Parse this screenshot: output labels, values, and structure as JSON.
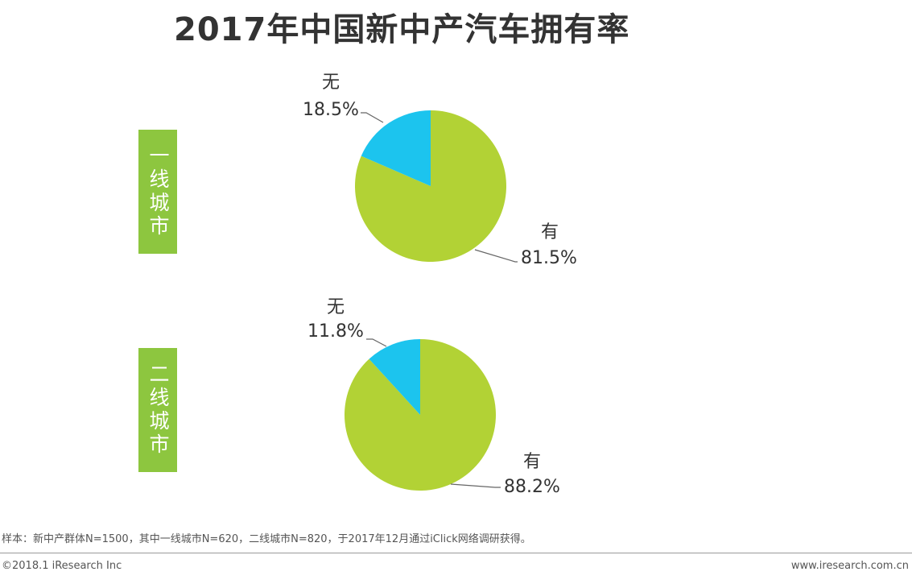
{
  "title": "2017年中国新中产汽车拥有率",
  "chart_data": [
    {
      "type": "pie",
      "group_label": "一线城市",
      "slices": [
        {
          "label": "有",
          "value": 81.5,
          "display": "81.5%",
          "color": "#b2d235"
        },
        {
          "label": "无",
          "value": 18.5,
          "display": "18.5%",
          "color": "#1cc4ee"
        }
      ]
    },
    {
      "type": "pie",
      "group_label": "二线城市",
      "slices": [
        {
          "label": "有",
          "value": 88.2,
          "display": "88.2%",
          "color": "#b2d235"
        },
        {
          "label": "无",
          "value": 11.8,
          "display": "11.8%",
          "color": "#1cc4ee"
        }
      ]
    }
  ],
  "footnote": "样本：新中产群体N=1500，其中一线城市N=620，二线城市N=820，于2017年12月通过iClick网络调研获得。",
  "copyright": "©2018.1 iResearch Inc",
  "website": "www.iresearch.com.cn"
}
